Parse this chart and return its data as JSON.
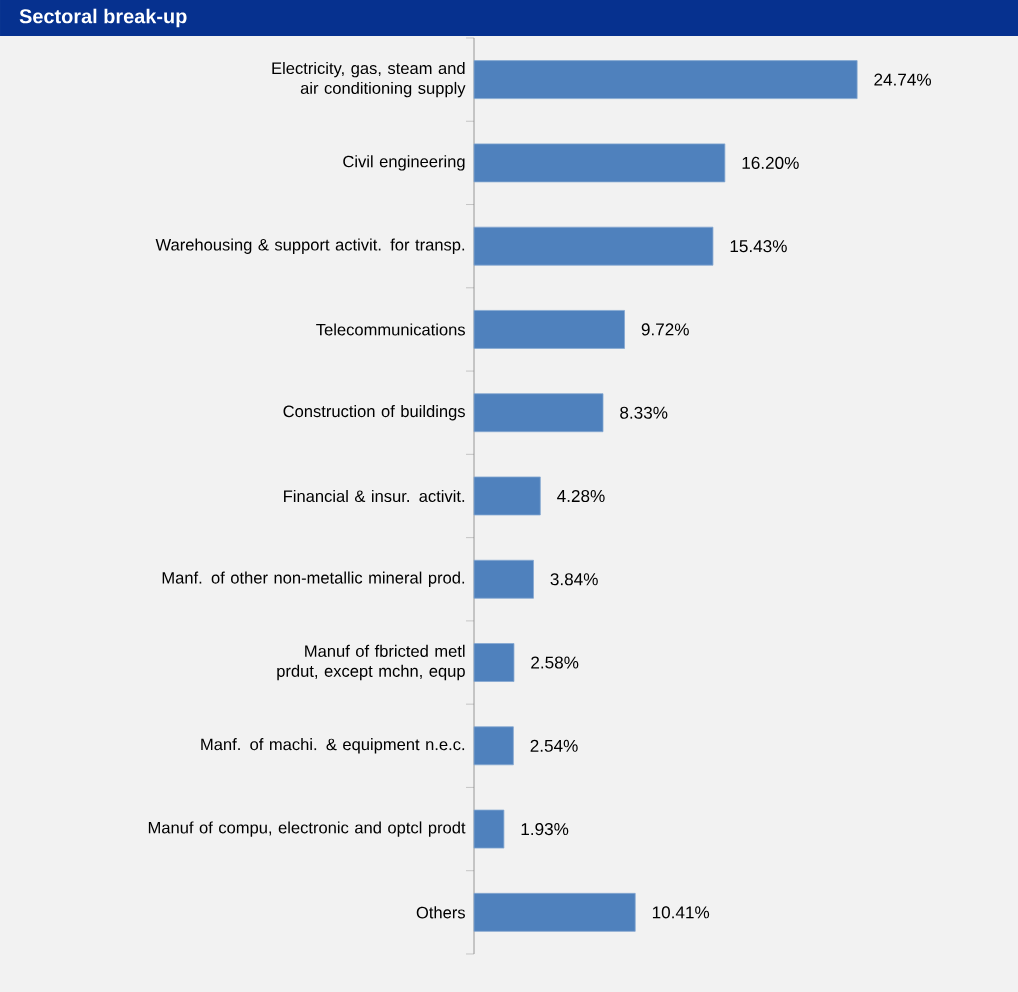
{
  "chart_data": {
    "type": "bar",
    "orientation": "horizontal",
    "title": "Sectoral break-up",
    "categories": [
      "Electricity, gas, steam and air conditioning supply",
      "Civil engineering",
      "Warehousing & support activit. for transp.",
      "Telecommunications",
      "Construction of buildings",
      "Financial & insur. activit.",
      "Manf. of other non-metallic mineral prod.",
      "Manuf of fbricted metl prdut, except mchn, equp",
      "Manf. of machi. & equipment n.e.c.",
      "Manuf of compu, electronic and optcl prodt",
      "Others"
    ],
    "values": [
      24.74,
      16.2,
      15.43,
      9.72,
      8.33,
      4.28,
      3.84,
      2.58,
      2.54,
      1.93,
      10.41
    ],
    "value_labels": [
      "24.74%",
      "16.20%",
      "15.43%",
      "9.72%",
      "8.33%",
      "4.28%",
      "3.84%",
      "2.58%",
      "2.54%",
      "1.93%",
      "10.41%"
    ],
    "color": "#4f81bd"
  }
}
